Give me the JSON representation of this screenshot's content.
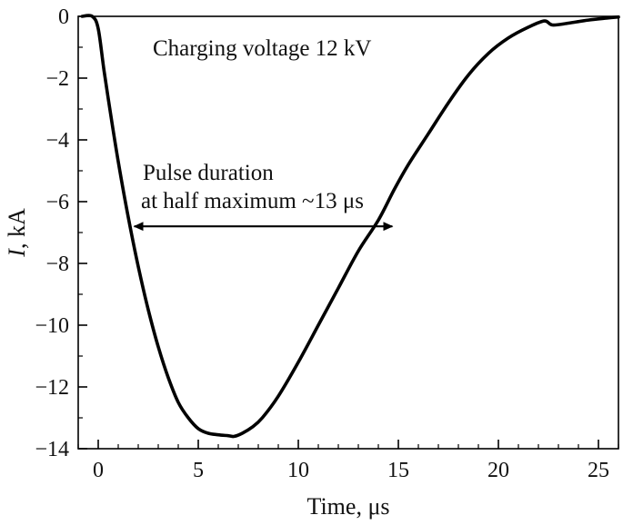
{
  "chart_data": {
    "type": "line",
    "xlabel": "Time, μs",
    "ylabel_symbol": "I",
    "ylabel_rest": ", kA",
    "xlim": [
      -1,
      26
    ],
    "ylim": [
      -14,
      0
    ],
    "xticks": [
      0,
      5,
      10,
      15,
      20,
      25
    ],
    "yticks": [
      0,
      -2,
      -4,
      -6,
      -8,
      -10,
      -12,
      -14
    ],
    "grid": false,
    "legend": "none",
    "annotations": {
      "title": "Charging voltage 12 kV",
      "fwhm_line1": "Pulse duration",
      "fwhm_line2": "at half maximum ~13 μs",
      "fwhm_arrow": {
        "x_start": 1.8,
        "x_end": 14.7,
        "y": -6.8
      }
    },
    "series": [
      {
        "color": "#000000",
        "x": [
          -0.8,
          -0.3,
          0.0,
          0.3,
          0.7,
          1.0,
          1.5,
          2.0,
          2.5,
          3.0,
          3.5,
          4.0,
          4.5,
          5.0,
          5.5,
          6.0,
          6.5,
          6.8,
          7.2,
          7.7,
          8.2,
          9.0,
          10.0,
          11.0,
          12.0,
          13.0,
          14.0,
          14.8,
          15.5,
          16.5,
          17.5,
          18.5,
          19.5,
          20.5,
          21.5,
          22.3,
          22.7,
          23.5,
          24.5,
          25.5,
          26.0
        ],
        "y": [
          0.0,
          0.0,
          -0.4,
          -1.8,
          -3.5,
          -4.7,
          -6.5,
          -8.1,
          -9.5,
          -10.7,
          -11.7,
          -12.5,
          -13.0,
          -13.35,
          -13.5,
          -13.55,
          -13.58,
          -13.6,
          -13.5,
          -13.3,
          -13.0,
          -12.3,
          -11.2,
          -10.0,
          -8.8,
          -7.6,
          -6.6,
          -5.6,
          -4.8,
          -3.8,
          -2.8,
          -1.9,
          -1.2,
          -0.7,
          -0.35,
          -0.15,
          -0.28,
          -0.22,
          -0.12,
          -0.05,
          -0.02
        ]
      }
    ]
  }
}
